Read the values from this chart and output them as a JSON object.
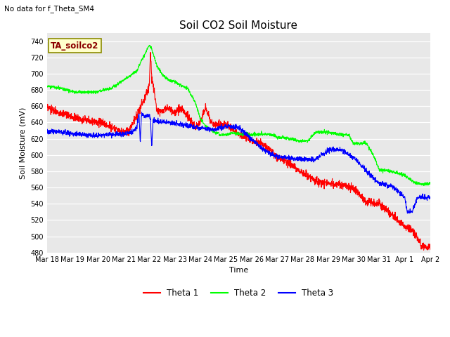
{
  "title": "Soil CO2 Soil Moisture",
  "subtitle": "No data for f_Theta_SM4",
  "annotation": "TA_soilco2",
  "xlabel": "Time",
  "ylabel": "Soil Moisture (mV)",
  "ylim": [
    480,
    750
  ],
  "yticks": [
    480,
    500,
    520,
    540,
    560,
    580,
    600,
    620,
    640,
    660,
    680,
    700,
    720,
    740
  ],
  "xlabels": [
    "Mar 18",
    "Mar 19",
    "Mar 20",
    "Mar 21",
    "Mar 22",
    "Mar 23",
    "Mar 24",
    "Mar 25",
    "Mar 26",
    "Mar 27",
    "Mar 28",
    "Mar 29",
    "Mar 30",
    "Mar 31",
    "Apr 1",
    "Apr 2"
  ],
  "background_color": "#e8e8e8",
  "line_colors": [
    "red",
    "lime",
    "blue"
  ],
  "legend_labels": [
    "Theta 1",
    "Theta 2",
    "Theta 3"
  ],
  "title_fontsize": 11,
  "axis_fontsize": 8,
  "tick_fontsize": 7
}
